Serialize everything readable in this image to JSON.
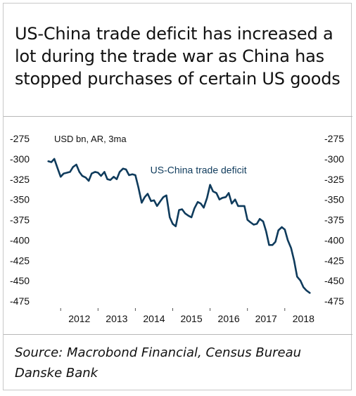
{
  "title": "US-China trade deficit has increased a lot during the trade war as China has stopped purchases of certain US goods",
  "source": "Source: Macrobond Financial, Census Bureau Danske Bank",
  "colors": {
    "line": "#0f3b5c",
    "text": "#111111",
    "border": "#b8b8b8"
  },
  "chart_data": {
    "type": "line",
    "unit_label": "USD bn, AR, 3ma",
    "ylim": [
      -475,
      -275
    ],
    "yticks": [
      "-275",
      "-300",
      "-325",
      "-350",
      "-375",
      "-400",
      "-425",
      "-450",
      "-475"
    ],
    "ytick_values": [
      -275,
      -300,
      -325,
      -350,
      -375,
      -400,
      -425,
      -450,
      -475
    ],
    "xlim": [
      2011.6,
      2018.72
    ],
    "xtick_labels": [
      "2012",
      "2013",
      "2014",
      "2015",
      "2016",
      "2017",
      "2018"
    ],
    "xtick_positions": [
      2012.5,
      2013.5,
      2014.5,
      2015.5,
      2016.5,
      2017.5,
      2018.5
    ],
    "year_boundaries": [
      2012,
      2013,
      2014,
      2015,
      2016,
      2017,
      2018
    ],
    "grid": false,
    "legend": "none",
    "series": [
      {
        "name": "US-China trade deficit",
        "x": [
          2011.67,
          2011.75,
          2011.83,
          2011.92,
          2012.0,
          2012.08,
          2012.17,
          2012.25,
          2012.33,
          2012.42,
          2012.5,
          2012.58,
          2012.67,
          2012.75,
          2012.83,
          2012.92,
          2013.0,
          2013.08,
          2013.17,
          2013.25,
          2013.33,
          2013.42,
          2013.5,
          2013.58,
          2013.67,
          2013.75,
          2013.83,
          2013.92,
          2014.0,
          2014.08,
          2014.17,
          2014.25,
          2014.33,
          2014.42,
          2014.5,
          2014.58,
          2014.67,
          2014.75,
          2014.83,
          2014.92,
          2015.0,
          2015.08,
          2015.17,
          2015.25,
          2015.33,
          2015.42,
          2015.5,
          2015.58,
          2015.67,
          2015.75,
          2015.83,
          2015.92,
          2016.0,
          2016.08,
          2016.17,
          2016.25,
          2016.33,
          2016.42,
          2016.5,
          2016.58,
          2016.67,
          2016.75,
          2016.83,
          2016.92,
          2017.0,
          2017.08,
          2017.17,
          2017.25,
          2017.33,
          2017.42,
          2017.5,
          2017.58,
          2017.67,
          2017.75,
          2017.83,
          2017.92,
          2018.0,
          2018.08,
          2018.17,
          2018.25,
          2018.33,
          2018.42,
          2018.5,
          2018.58,
          2018.67
        ],
        "values": [
          -303,
          -304,
          -300,
          -312,
          -322,
          -318,
          -317,
          -316,
          -310,
          -307,
          -316,
          -321,
          -323,
          -327,
          -318,
          -316,
          -317,
          -321,
          -316,
          -325,
          -326,
          -322,
          -325,
          -316,
          -312,
          -313,
          -320,
          -319,
          -320,
          -335,
          -354,
          -347,
          -343,
          -352,
          -351,
          -358,
          -352,
          -347,
          -345,
          -372,
          -380,
          -383,
          -363,
          -362,
          -367,
          -370,
          -372,
          -361,
          -353,
          -355,
          -360,
          -348,
          -332,
          -340,
          -342,
          -350,
          -348,
          -347,
          -342,
          -355,
          -350,
          -358,
          -358,
          -358,
          -375,
          -378,
          -381,
          -380,
          -374,
          -377,
          -389,
          -406,
          -406,
          -402,
          -388,
          -384,
          -387,
          -400,
          -410,
          -425,
          -445,
          -450,
          -458,
          -462,
          -465
        ]
      }
    ],
    "annotations": [
      {
        "text": "US-China trade deficit",
        "x": 2014.4,
        "y": -318
      }
    ]
  }
}
